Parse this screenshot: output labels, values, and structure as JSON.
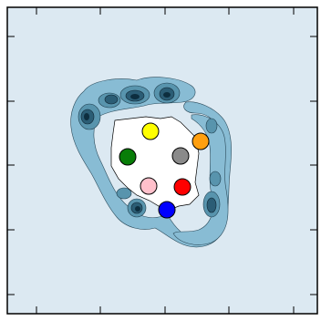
{
  "colors": {
    "background": "#dce9f2",
    "contour_light": "#88bcd4",
    "contour_mid": "#5894ad",
    "contour_dark": "#2b5d75",
    "contour_darkest": "#0d2e3f",
    "inner_region": "#ffffff",
    "frame": "#000000"
  },
  "tokens": [
    {
      "name": "yellow-token",
      "color": "#ffff00"
    },
    {
      "name": "orange-token",
      "color": "#ff9f0f"
    },
    {
      "name": "green-token",
      "color": "#087d08"
    },
    {
      "name": "gray-token",
      "color": "#8a8a8a"
    },
    {
      "name": "pink-token",
      "color": "#ffc0cb"
    },
    {
      "name": "red-token",
      "color": "#ff0000"
    },
    {
      "name": "blue-token",
      "color": "#0000ff"
    }
  ]
}
